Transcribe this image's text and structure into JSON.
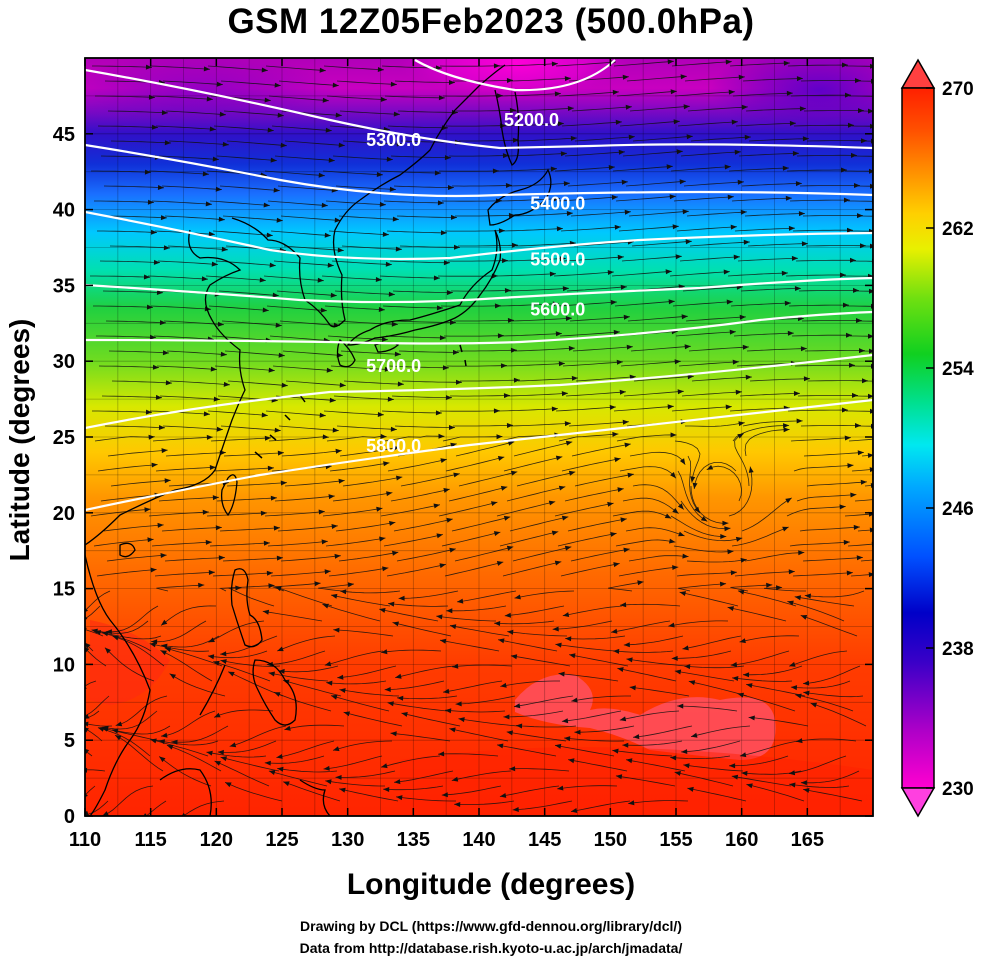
{
  "title": "GSM 12Z05Feb2023 (500.0hPa)",
  "axes": {
    "xlabel": "Longitude (degrees)",
    "ylabel": "Latitude  (degrees)",
    "x_range": [
      110,
      170
    ],
    "y_range": [
      0,
      50
    ],
    "x_ticks": [
      "110",
      "115",
      "120",
      "125",
      "130",
      "135",
      "140",
      "145",
      "150",
      "155",
      "160",
      "165"
    ],
    "y_ticks": [
      "0",
      "5",
      "10",
      "15",
      "20",
      "25",
      "30",
      "35",
      "40",
      "45"
    ]
  },
  "colorbar": {
    "min": 230,
    "max": 270,
    "ticks": [
      "230",
      "238",
      "246",
      "254",
      "262",
      "270"
    ],
    "colors": [
      "#ff00dd",
      "#8a00d0",
      "#1800d8",
      "#0050ff",
      "#00c8ff",
      "#00e6a0",
      "#10d030",
      "#90e020",
      "#ffe600",
      "#ff9a00",
      "#ff5a00",
      "#ff1a00"
    ]
  },
  "contours": [
    {
      "label": "5200.0",
      "lon": 144,
      "lat": 45.5
    },
    {
      "label": "5300.0",
      "lon": 133.5,
      "lat": 44.2
    },
    {
      "label": "5400.0",
      "lon": 146,
      "lat": 40.0
    },
    {
      "label": "5500.0",
      "lon": 146,
      "lat": 36.3
    },
    {
      "label": "5600.0",
      "lon": 146,
      "lat": 33.0
    },
    {
      "label": "5700.0",
      "lon": 133.5,
      "lat": 29.3
    },
    {
      "label": "5800.0",
      "lon": 133.5,
      "lat": 24.0
    }
  ],
  "credits": [
    "Drawing by DCL (https://www.gfd-dennou.org/library/dcl/)",
    "Data from http://database.rish.kyoto-u.ac.jp/arch/jmadata/"
  ]
}
